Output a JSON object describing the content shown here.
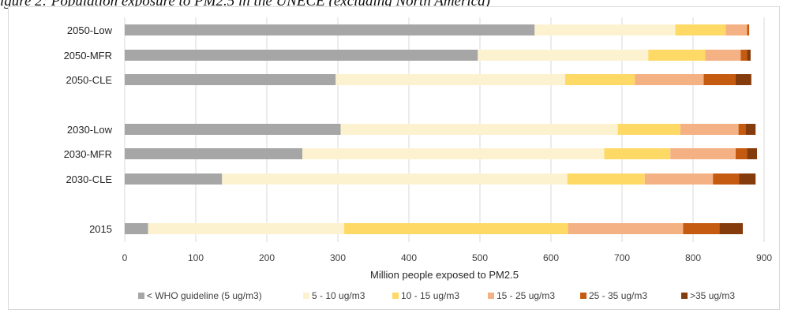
{
  "caption": "igure 2: Population exposure to PM2.5 in the UNECE (excluding North America)",
  "chart_data": {
    "type": "bar",
    "orientation": "horizontal",
    "stacked": true,
    "title": "",
    "xlabel": "Million people exposed to PM2.5",
    "ylabel": "",
    "xlim": [
      0,
      900
    ],
    "xticks": [
      0,
      100,
      200,
      300,
      400,
      500,
      600,
      700,
      800,
      900
    ],
    "grid": true,
    "legend_position": "bottom",
    "categories": [
      "2050-Low",
      "2050-MFR",
      "2050-CLE",
      "2030-Low",
      "2030-MFR",
      "2030-CLE",
      "2015"
    ],
    "series": [
      {
        "name": "< WHO guideline (5 ug/m3)",
        "color": "#a6a6a6",
        "values": [
          577,
          497,
          297,
          304,
          250,
          137,
          33
        ]
      },
      {
        "name": "5 - 10 ug/m3",
        "color": "#fdf2d0",
        "values": [
          198,
          240,
          323,
          390,
          425,
          486,
          276
        ]
      },
      {
        "name": "10 - 15 ug/m3",
        "color": "#ffd966",
        "values": [
          71,
          80,
          98,
          88,
          93,
          109,
          315
        ]
      },
      {
        "name": "15 - 25 ug/m3",
        "color": "#f4b183",
        "values": [
          30,
          50,
          97,
          82,
          92,
          96,
          162
        ]
      },
      {
        "name": "25 - 35 ug/m3",
        "color": "#c55a11",
        "values": [
          3,
          9,
          45,
          10,
          16,
          37,
          51
        ]
      },
      {
        "name": ">35 ug/m3",
        "color": "#843c0c",
        "values": [
          0,
          5,
          22,
          14,
          14,
          23,
          33
        ]
      }
    ]
  }
}
